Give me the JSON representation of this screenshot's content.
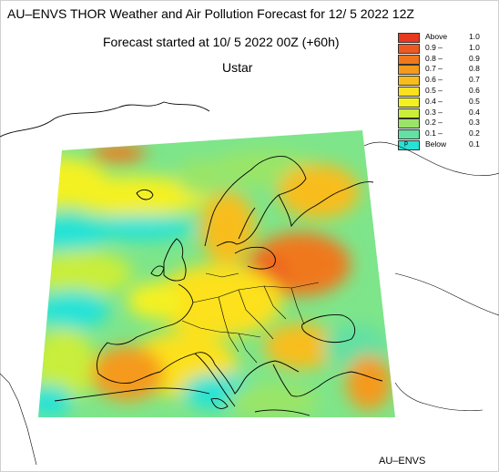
{
  "title": "AU–ENVS THOR Weather and Air Pollution Forecast for 12/ 5 2022  12Z",
  "subtitle": "Forecast started at 10/ 5 2022  00Z (+60h)",
  "parameter": "Ustar",
  "credit": "AU–ENVS",
  "legend": [
    {
      "label": "Above",
      "num": "1.0",
      "color": "#e8391e"
    },
    {
      "label": "0.9 –",
      "num": "1.0",
      "color": "#ec5a22"
    },
    {
      "label": "0.8 –",
      "num": "0.9",
      "color": "#f0781c"
    },
    {
      "label": "0.7 –",
      "num": "0.8",
      "color": "#f59a1c"
    },
    {
      "label": "0.6 –",
      "num": "0.7",
      "color": "#f8bd1d"
    },
    {
      "label": "0.5 –",
      "num": "0.6",
      "color": "#fce11e"
    },
    {
      "label": "0.4 –",
      "num": "0.5",
      "color": "#f4f121"
    },
    {
      "label": "0.3 –",
      "num": "0.4",
      "color": "#c9ee3a"
    },
    {
      "label": "0.2 –",
      "num": "0.3",
      "color": "#9ae568"
    },
    {
      "label": "0.1 –",
      "num": "0.2",
      "color": "#63e0a2"
    },
    {
      "label": "Below",
      "num": "0.1",
      "color": "#25e3d6",
      "marker": "p"
    }
  ]
}
